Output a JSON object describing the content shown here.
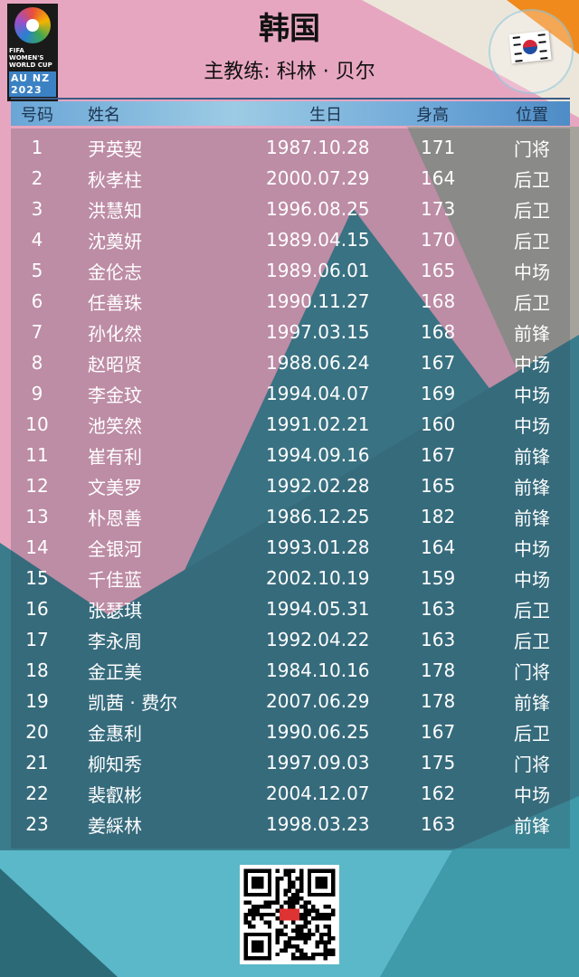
{
  "header": {
    "title": "韩国",
    "coach": "主教练: 科林 · 贝尔",
    "logo_text": "FIFA WOMEN'S WORLD CUP",
    "logo_hosts": "AU NZ 2023",
    "flag": "south-korea-flag"
  },
  "table": {
    "columns": [
      "号码",
      "姓名",
      "生日",
      "身高",
      "位置"
    ],
    "rows": [
      [
        "1",
        "尹英契",
        "1987.10.28",
        "171",
        "门将"
      ],
      [
        "2",
        "秋孝柱",
        "2000.07.29",
        "164",
        "后卫"
      ],
      [
        "3",
        "洪慧知",
        "1996.08.25",
        "173",
        "后卫"
      ],
      [
        "4",
        "沈奠妍",
        "1989.04.15",
        "170",
        "后卫"
      ],
      [
        "5",
        "金伦志",
        "1989.06.01",
        "165",
        "中场"
      ],
      [
        "6",
        "任善珠",
        "1990.11.27",
        "168",
        "后卫"
      ],
      [
        "7",
        "孙化然",
        "1997.03.15",
        "168",
        "前锋"
      ],
      [
        "8",
        "赵昭贤",
        "1988.06.24",
        "167",
        "中场"
      ],
      [
        "9",
        "李金玟",
        "1994.04.07",
        "169",
        "中场"
      ],
      [
        "10",
        "池笑然",
        "1991.02.21",
        "160",
        "中场"
      ],
      [
        "11",
        "崔有利",
        "1994.09.16",
        "167",
        "前锋"
      ],
      [
        "12",
        "文美罗",
        "1992.02.28",
        "165",
        "前锋"
      ],
      [
        "13",
        "朴恩善",
        "1986.12.25",
        "182",
        "前锋"
      ],
      [
        "14",
        "全银河",
        "1993.01.28",
        "164",
        "中场"
      ],
      [
        "15",
        "千佳蓝",
        "2002.10.19",
        "159",
        "中场"
      ],
      [
        "16",
        "张瑟琪",
        "1994.05.31",
        "163",
        "后卫"
      ],
      [
        "17",
        "李永周",
        "1992.04.22",
        "163",
        "后卫"
      ],
      [
        "18",
        "金正美",
        "1984.10.16",
        "178",
        "门将"
      ],
      [
        "19",
        "凯茜 · 费尔",
        "2007.06.29",
        "178",
        "前锋"
      ],
      [
        "20",
        "金惠利",
        "1990.06.25",
        "167",
        "后卫"
      ],
      [
        "21",
        "柳知秀",
        "1997.09.03",
        "175",
        "门将"
      ],
      [
        "22",
        "裴叡彬",
        "2004.12.07",
        "162",
        "中场"
      ],
      [
        "23",
        "姜綵林",
        "1998.03.23",
        "163",
        "前锋"
      ]
    ]
  },
  "colors": {
    "pink": "#e8a9c2",
    "orange": "#f08a1c",
    "teal": "#3e8494",
    "cyan": "#5ab8c8",
    "header_blue": "#6aa6d6"
  }
}
